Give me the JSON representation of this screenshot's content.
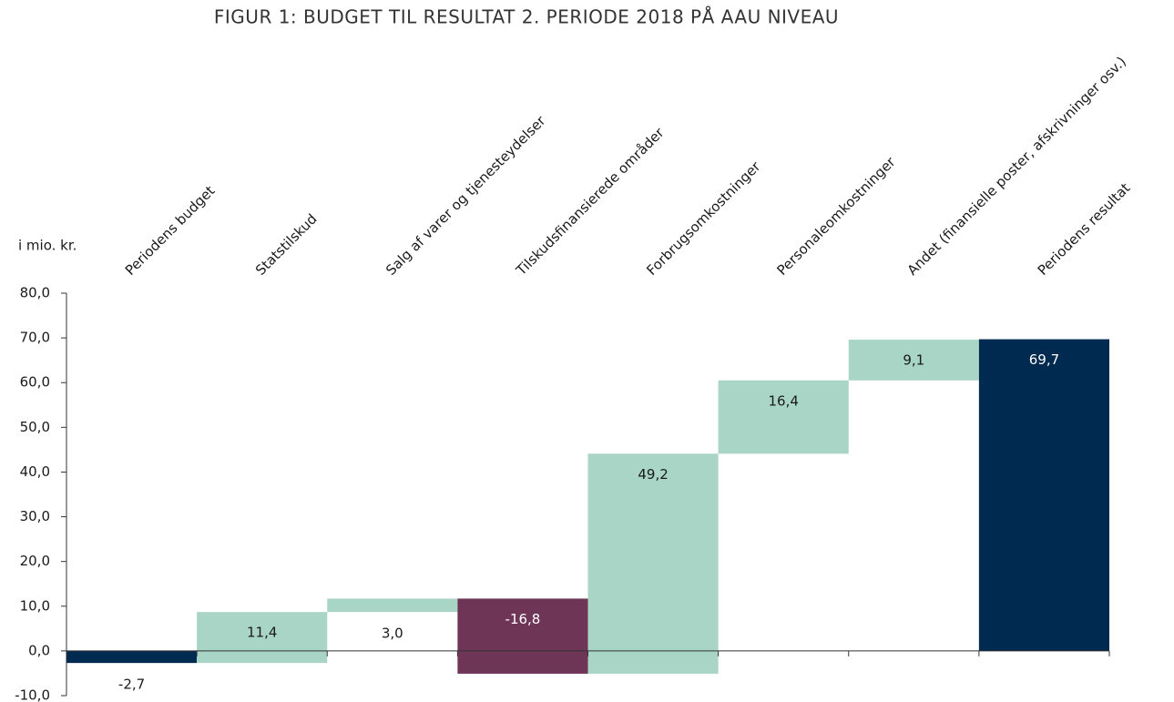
{
  "chart_data": {
    "type": "waterfall",
    "title": "FIGUR 1: BUDGET TIL RESULTAT 2. PERIODE 2018 PÅ AAU NIVEAU",
    "y_axis_label": "i mio. kr.",
    "categories": [
      "Periodens budget",
      "Statstilskud",
      "Salg af varer og tjenesteydelser",
      "Tilskudsfinansierede områder",
      "Forbrugsomkostninger",
      "Personaleomkostninger",
      "Andet (finansielle poster, afskrivninger osv.)",
      "Periodens resultat"
    ],
    "values": [
      -2.7,
      11.4,
      3.0,
      -16.8,
      49.2,
      16.4,
      9.1,
      69.7
    ],
    "value_labels": [
      "-2,7",
      "11,4",
      "3,0",
      "-16,8",
      "49,2",
      "16,4",
      "9,1",
      "69,7"
    ],
    "totals": [
      true,
      false,
      false,
      false,
      false,
      false,
      false,
      true
    ],
    "total_color": "#002a4f",
    "increase_color": "#a8d5c6",
    "decrease_color": "#6e3557",
    "ylim": [
      -10,
      80
    ],
    "yticks": [
      {
        "value": -10,
        "label": "-10,0"
      },
      {
        "value": 0,
        "label": "0,0"
      },
      {
        "value": 10,
        "label": "10,0"
      },
      {
        "value": 20,
        "label": "20,0"
      },
      {
        "value": 30,
        "label": "30,0"
      },
      {
        "value": 40,
        "label": "40,0"
      },
      {
        "value": 50,
        "label": "50,0"
      },
      {
        "value": 60,
        "label": "60,0"
      },
      {
        "value": 70,
        "label": "70,0"
      },
      {
        "value": 80,
        "label": "80,0"
      }
    ]
  }
}
